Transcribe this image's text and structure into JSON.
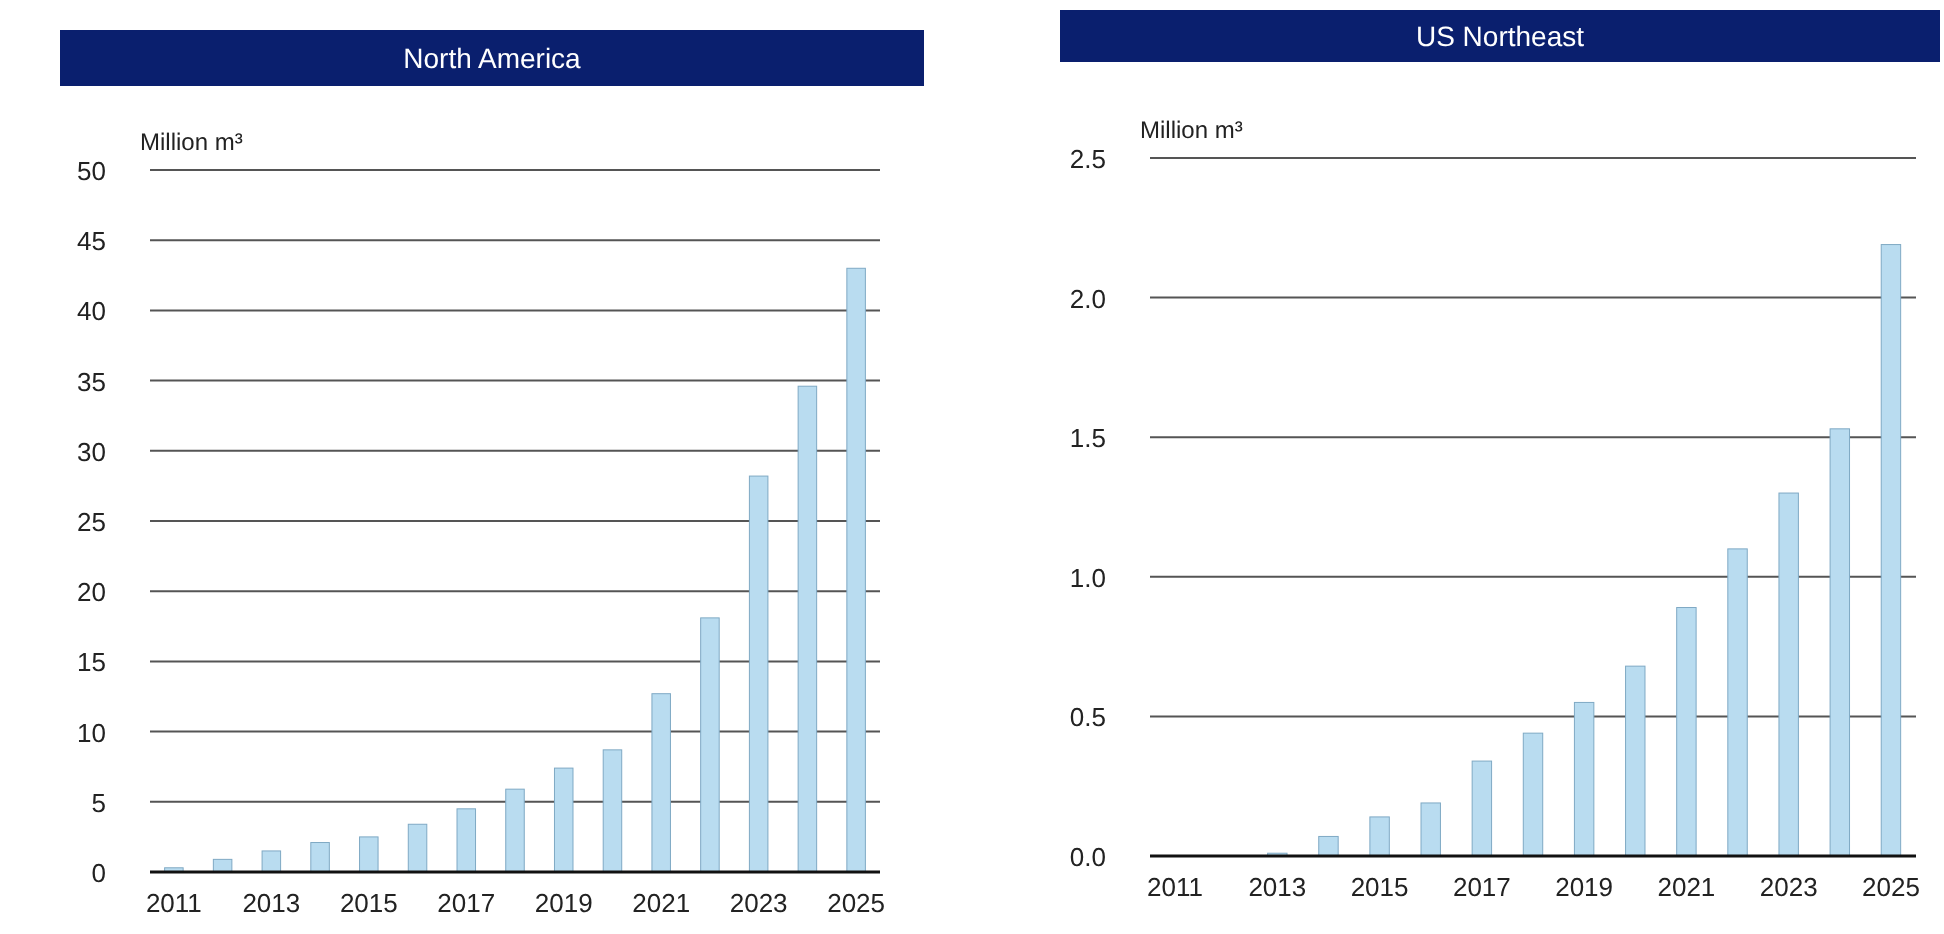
{
  "chart_data": [
    {
      "type": "bar",
      "title": "North America",
      "ylabel": "Million m³",
      "categories": [
        "2011",
        null,
        "2013",
        null,
        "2015",
        null,
        "2017",
        null,
        "2019",
        null,
        "2021",
        null,
        "2023",
        null,
        "2025"
      ],
      "values": [
        0.3,
        0.9,
        1.5,
        2.1,
        2.5,
        3.4,
        4.5,
        5.9,
        7.4,
        8.7,
        12.7,
        18.1,
        28.2,
        34.6,
        43.0
      ],
      "color": "#b9dcf0",
      "ylim": [
        0,
        50
      ],
      "yticks": [
        0,
        5,
        10,
        15,
        20,
        25,
        30,
        35,
        40,
        45,
        50
      ],
      "grid": "y"
    },
    {
      "type": "bar",
      "title": "US Northeast",
      "ylabel": "Million m³",
      "categories": [
        "2011",
        null,
        "2013",
        null,
        "2015",
        null,
        "2017",
        null,
        "2019",
        null,
        "2021",
        null,
        "2023",
        null,
        "2025"
      ],
      "values": [
        0,
        0,
        0.01,
        0.07,
        0.14,
        0.19,
        0.34,
        0.44,
        0.55,
        0.68,
        0.89,
        1.1,
        1.3,
        1.53,
        2.19
      ],
      "color": "#b9dcf0",
      "ylim": [
        0,
        2.5
      ],
      "yticks": [
        {
          "value": 0,
          "label": "0.0"
        },
        {
          "value": 0.5,
          "label": "0.5"
        },
        {
          "value": 1,
          "label": "1.0"
        },
        {
          "value": 1.5,
          "label": "1.5"
        },
        {
          "value": 2,
          "label": "2.0"
        },
        {
          "value": 2.5,
          "label": "2.5"
        }
      ],
      "grid": "y"
    }
  ]
}
